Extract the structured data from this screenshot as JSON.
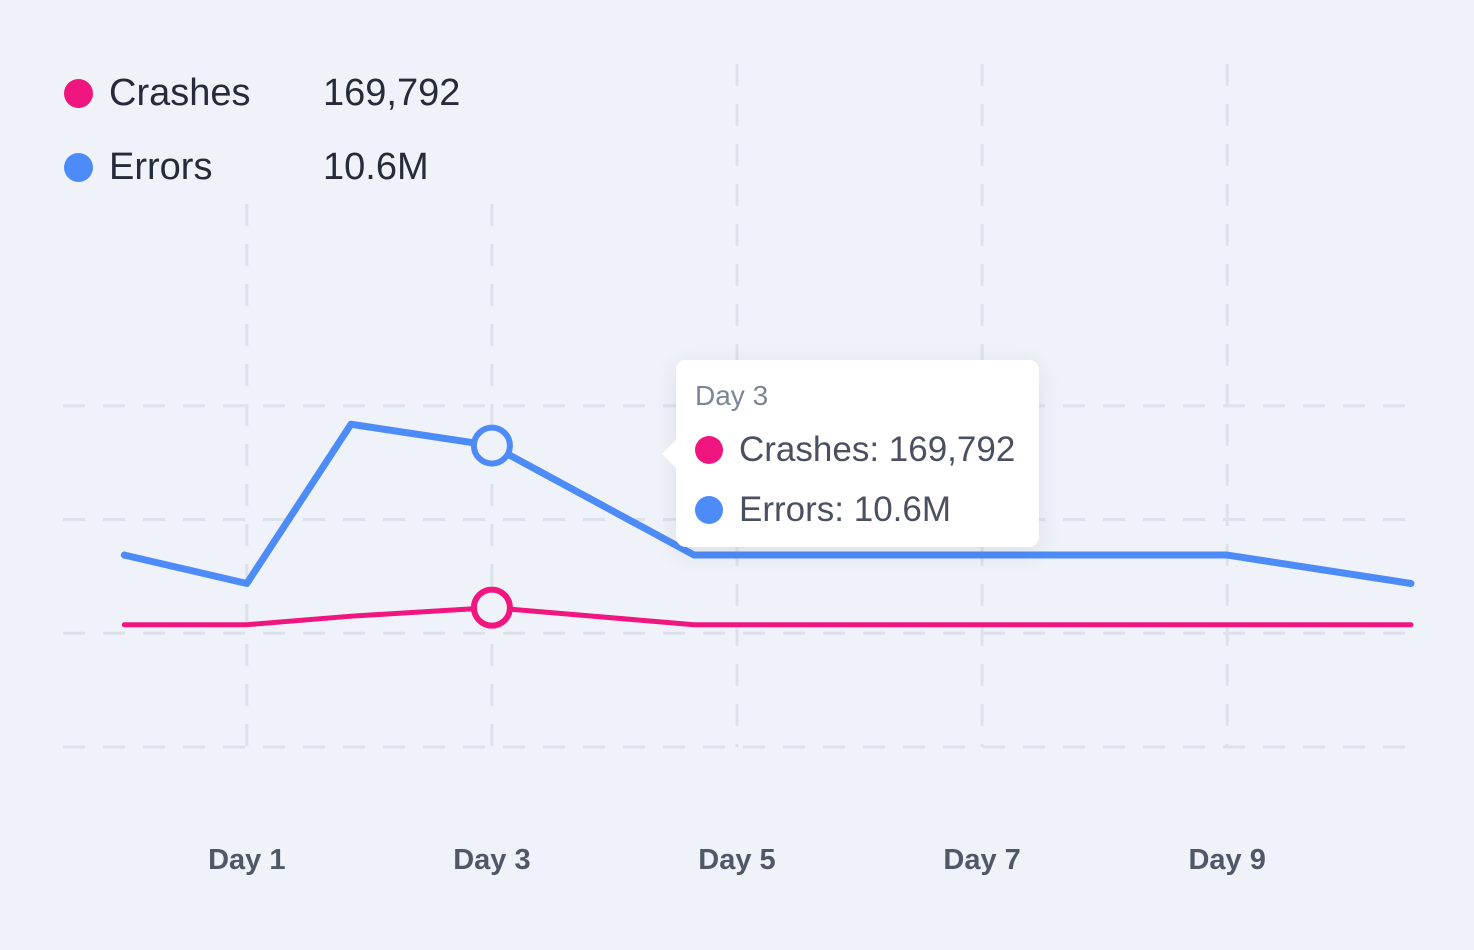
{
  "legend": [
    {
      "name": "Crashes",
      "value": "169,792",
      "color": "#f0157f"
    },
    {
      "name": "Errors",
      "value": "10.6M",
      "color": "#4d8cf8"
    }
  ],
  "tooltip": {
    "title": "Day 3",
    "separator": ": ",
    "rows": [
      {
        "label": "Crashes",
        "value": "169,792",
        "color": "#f0157f"
      },
      {
        "label": "Errors",
        "value": "10.6M",
        "color": "#4d8cf8"
      }
    ]
  },
  "chart_data": {
    "type": "line",
    "title": "",
    "xlabel": "",
    "ylabel": "",
    "x": [
      0,
      1,
      1.85,
      3,
      4.65,
      5,
      9,
      10.5
    ],
    "x_ticks": [
      {
        "x": 1,
        "label": "Day 1"
      },
      {
        "x": 3,
        "label": "Day 3"
      },
      {
        "x": 5,
        "label": "Day 5"
      },
      {
        "x": 7,
        "label": "Day 7"
      },
      {
        "x": 9,
        "label": "Day 9"
      }
    ],
    "xlim": [
      -0.5,
      10.5
    ],
    "ylim": [
      0,
      16
    ],
    "y_gridlines": [
      4,
      8,
      12
    ],
    "grid": true,
    "series": [
      {
        "name": "Errors",
        "color": "#4d8cf8",
        "values": [
          6.75,
          5.75,
          11.35,
          10.6,
          6.75,
          6.75,
          6.75,
          5.75
        ]
      },
      {
        "name": "Crashes",
        "color": "#f0157f",
        "values": [
          4.3,
          4.3,
          4.6,
          4.9,
          4.3,
          4.3,
          4.3,
          4.3
        ]
      }
    ],
    "highlight": {
      "x": 3,
      "label": "Day 3"
    }
  }
}
